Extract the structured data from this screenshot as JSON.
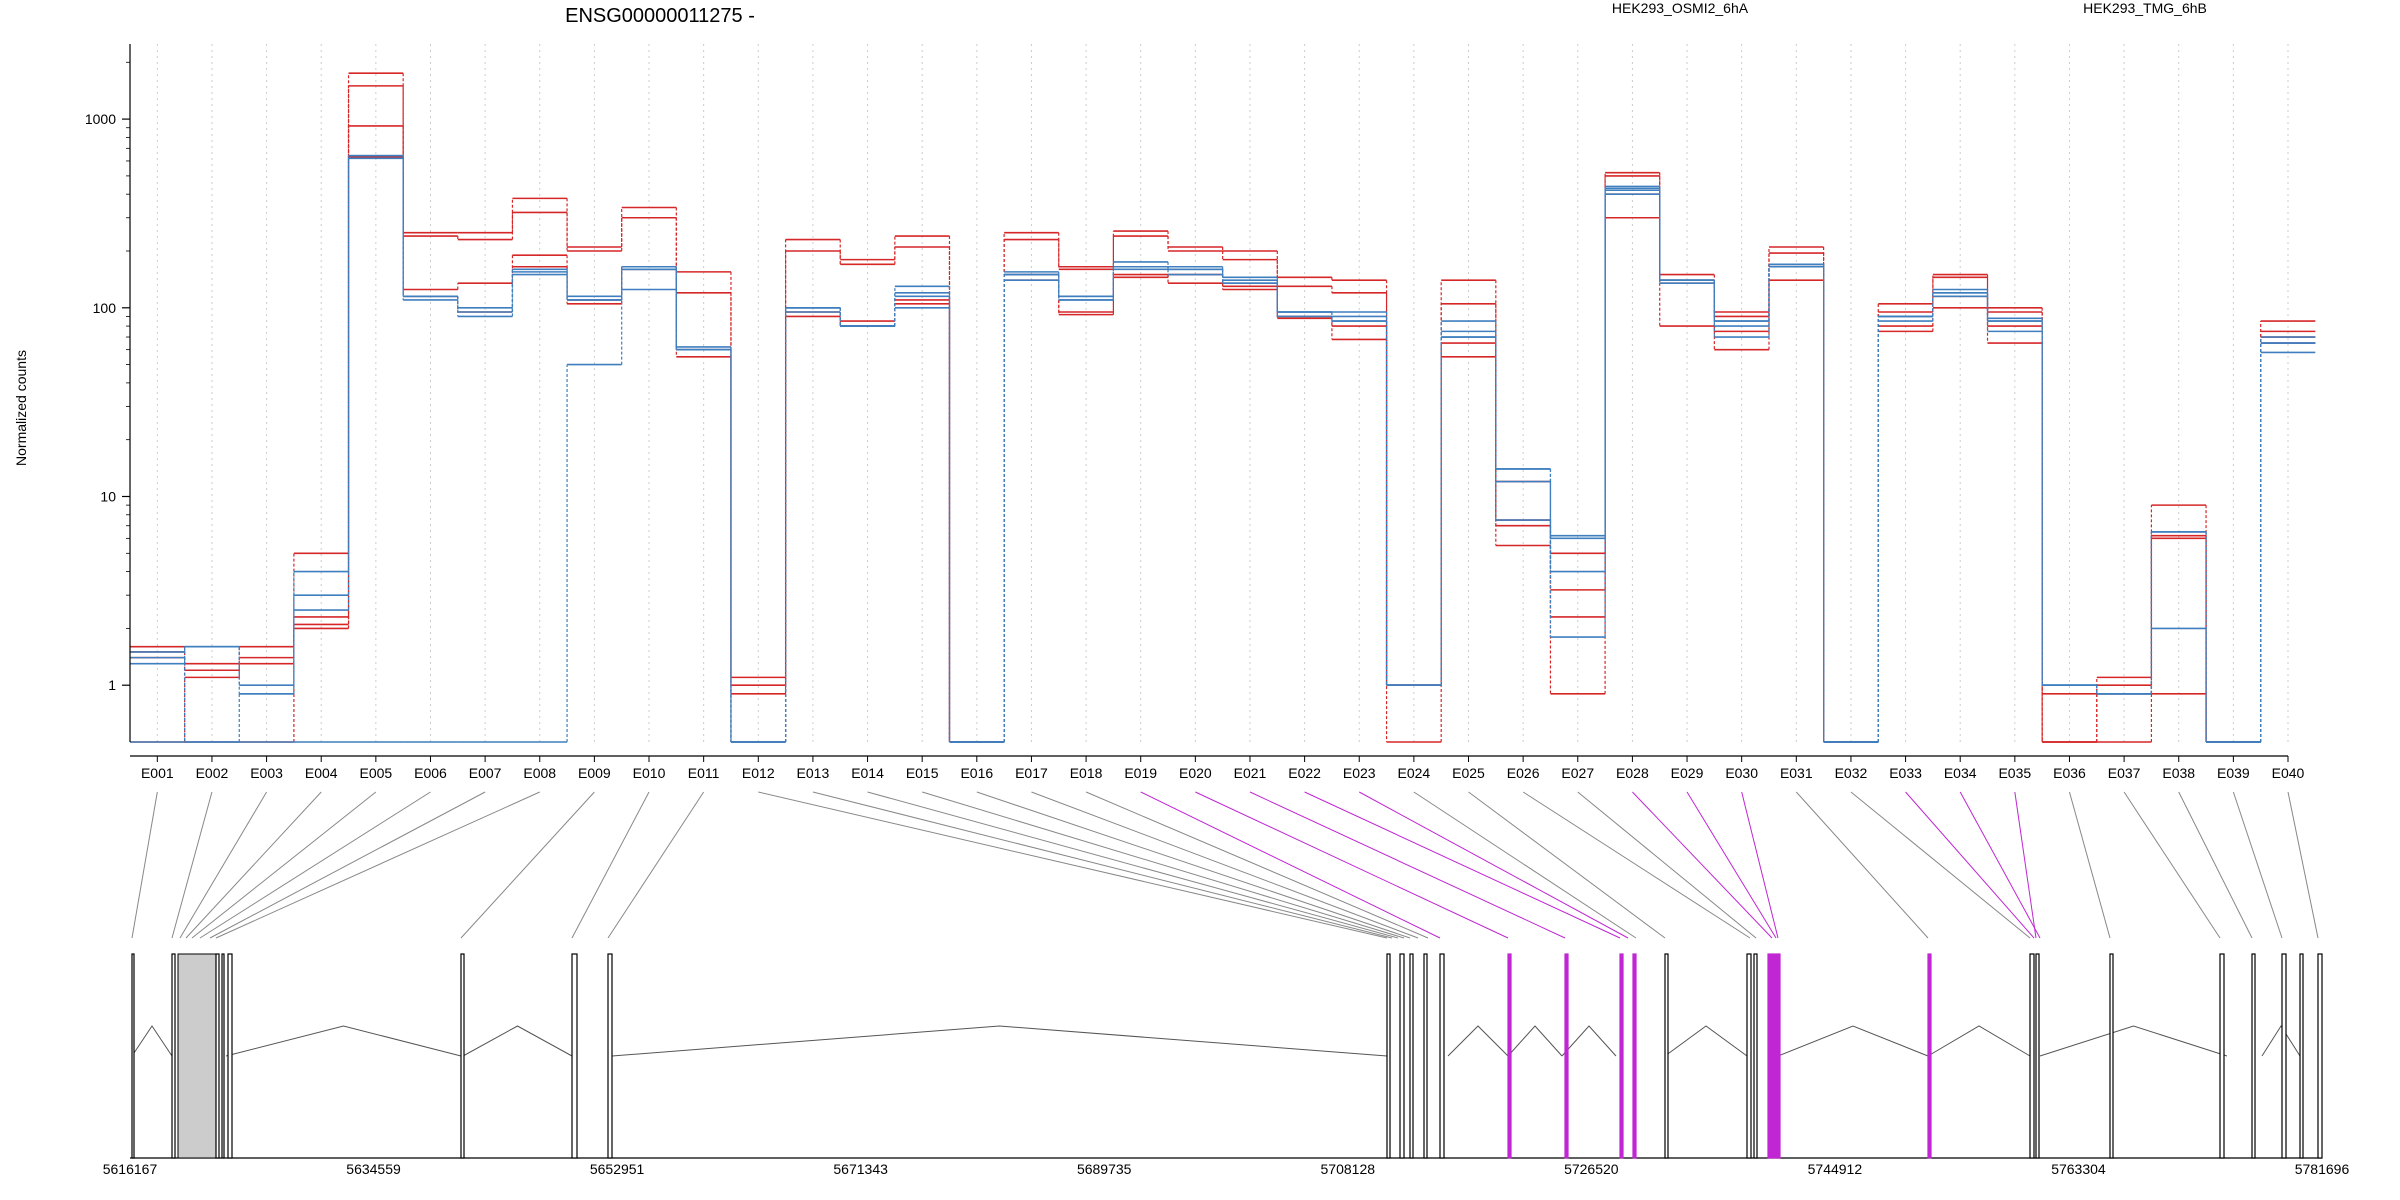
{
  "title": "ENSG00000011275 -",
  "ylabel": "Normalized counts",
  "colors": {
    "osmi": "#d62728",
    "tmg": "#3f7fbf",
    "mark": "#c026d3",
    "grid": "#cccccc",
    "intron": "#555555"
  },
  "legend": [
    {
      "name": "HEK293_OSMI2_6hA",
      "color": "#d62728"
    },
    {
      "name": "HEK293_TMG_6hB",
      "color": "#3f7fbf"
    }
  ],
  "chart_data": {
    "type": "line",
    "title": "ENSG00000011275 -",
    "xlabel": "",
    "ylabel": "Normalized counts",
    "yscale": "log",
    "yticks": [
      1,
      10,
      100,
      1000
    ],
    "ylim": [
      0.5,
      2500
    ],
    "grid": true,
    "legend_placement": "top",
    "categories": [
      "E001",
      "E002",
      "E003",
      "E004",
      "E005",
      "E006",
      "E007",
      "E008",
      "E009",
      "E010",
      "E011",
      "E012",
      "E013",
      "E014",
      "E015",
      "E016",
      "E017",
      "E018",
      "E019",
      "E020",
      "E021",
      "E022",
      "E023",
      "E024",
      "E025",
      "E026",
      "E027",
      "E028",
      "E029",
      "E030",
      "E031",
      "E032",
      "E033",
      "E034",
      "E035",
      "E036",
      "E037",
      "E038",
      "E039",
      "E040"
    ],
    "series": [
      {
        "group": "HEK293_OSMI2_6hA",
        "values": [
          1.6,
          1.2,
          1.6,
          5.0,
          1750,
          250,
          250,
          380,
          210,
          340,
          155,
          1.1,
          230,
          180,
          240,
          0.5,
          250,
          165,
          255,
          210,
          200,
          145,
          140,
          1.0,
          140,
          7.5,
          2.3,
          520,
          150,
          95,
          210,
          0.5,
          105,
          150,
          100,
          0.5,
          1.1,
          9.0,
          0.5,
          85
        ]
      },
      {
        "group": "HEK293_OSMI2_6hA",
        "values": [
          1.5,
          1.3,
          1.4,
          2.3,
          1500,
          240,
          230,
          320,
          200,
          300,
          120,
          0.9,
          200,
          170,
          210,
          0.5,
          230,
          160,
          240,
          200,
          180,
          130,
          120,
          1.0,
          105,
          5.5,
          0.9,
          500,
          140,
          90,
          195,
          0.5,
          95,
          145,
          95,
          0.9,
          0.9,
          6.2,
          0.5,
          75
        ]
      },
      {
        "group": "HEK293_OSMI2_6hA",
        "values": [
          1.4,
          0.5,
          0.5,
          2.0,
          920,
          125,
          135,
          190,
          110,
          160,
          60,
          0.5,
          95,
          85,
          110,
          0.5,
          150,
          95,
          150,
          135,
          125,
          88,
          68,
          1.0,
          55,
          12,
          5.0,
          300,
          80,
          60,
          140,
          0.5,
          75,
          100,
          65,
          0.5,
          0.5,
          0.9,
          0.5,
          65
        ]
      },
      {
        "group": "HEK293_OSMI2_6hA",
        "values": [
          0.5,
          1.1,
          1.3,
          2.1,
          630,
          115,
          95,
          165,
          105,
          165,
          55,
          1.0,
          90,
          80,
          105,
          0.5,
          140,
          92,
          145,
          150,
          130,
          90,
          80,
          0.5,
          65,
          7.0,
          3.2,
          400,
          135,
          75,
          170,
          0.5,
          80,
          115,
          80,
          0.5,
          1.0,
          6.0,
          0.5,
          70
        ]
      },
      {
        "group": "HEK293_TMG_6hB",
        "values": [
          1.5,
          1.6,
          1.0,
          4.0,
          640,
          115,
          100,
          160,
          115,
          165,
          60,
          0.5,
          100,
          80,
          130,
          0.5,
          155,
          115,
          175,
          165,
          145,
          95,
          95,
          1.0,
          85,
          14,
          6.2,
          440,
          140,
          80,
          170,
          0.5,
          85,
          120,
          85,
          1.0,
          0.9,
          6.5,
          0.5,
          70
        ]
      },
      {
        "group": "HEK293_TMG_6hB",
        "values": [
          1.4,
          0.5,
          0.9,
          2.5,
          620,
          110,
          90,
          150,
          110,
          160,
          62,
          0.5,
          100,
          80,
          120,
          0.5,
          150,
          115,
          165,
          160,
          140,
          95,
          90,
          1.0,
          75,
          14,
          6.0,
          420,
          140,
          85,
          170,
          0.5,
          90,
          125,
          88,
          1.0,
          0.9,
          6.5,
          0.5,
          58
        ]
      },
      {
        "group": "HEK293_TMG_6hB",
        "values": [
          0.5,
          0.5,
          0.5,
          0.5,
          0.5,
          0.5,
          0.5,
          0.5,
          50,
          125,
          60,
          0.5,
          100,
          80,
          100,
          0.5,
          140,
          110,
          160,
          150,
          135,
          90,
          85,
          1.0,
          70,
          12,
          4.0,
          430,
          140,
          85,
          170,
          0.5,
          90,
          120,
          85,
          1.0,
          0.9,
          2.0,
          0.5,
          65
        ]
      },
      {
        "group": "HEK293_TMG_6hB",
        "values": [
          1.3,
          1.6,
          0.9,
          3.0,
          640,
          115,
          95,
          155,
          110,
          160,
          60,
          0.5,
          95,
          80,
          115,
          0.5,
          150,
          110,
          165,
          160,
          135,
          95,
          85,
          1.0,
          70,
          7.5,
          1.8,
          400,
          135,
          70,
          165,
          0.5,
          90,
          115,
          75,
          1.0,
          0.9,
          6.5,
          0.5,
          65
        ]
      }
    ],
    "genomic_axis": {
      "ticks": [
        "5616167",
        "5634559",
        "5652951",
        "5671343",
        "5689735",
        "5708128",
        "5726520",
        "5744912",
        "5763304",
        "5781696"
      ],
      "tick_values": [
        5616167,
        5634559,
        5652951,
        5671343,
        5689735,
        5708128,
        5726520,
        5744912,
        5763304,
        5781696
      ]
    }
  }
}
